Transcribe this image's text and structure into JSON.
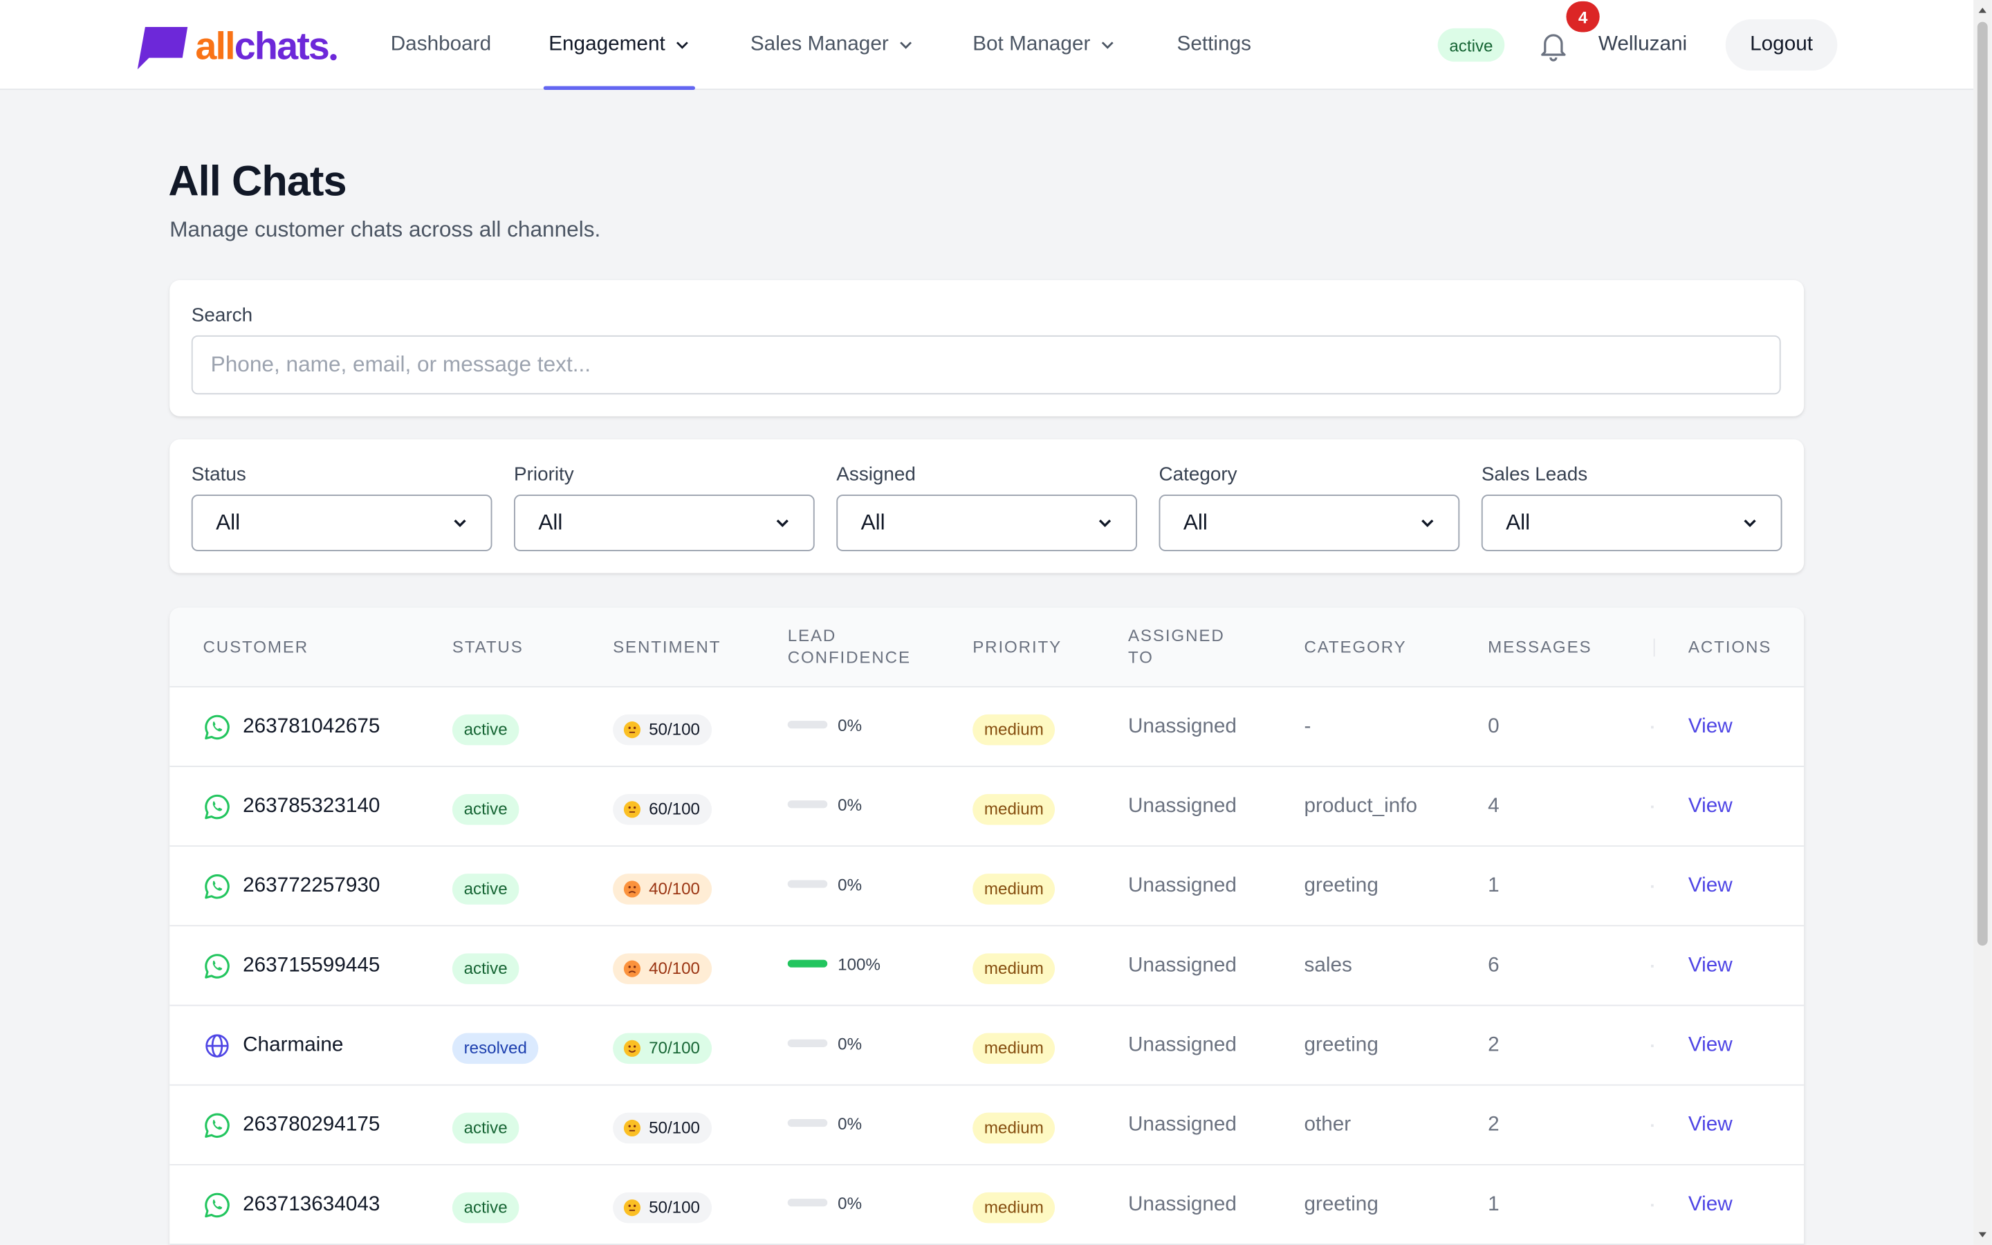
{
  "brand": {
    "part1": "all",
    "part2": "chats"
  },
  "nav": {
    "dashboard": "Dashboard",
    "engagement": "Engagement",
    "sales_manager": "Sales Manager",
    "bot_manager": "Bot Manager",
    "settings": "Settings",
    "active_item": "Engagement"
  },
  "header_right": {
    "status": "active",
    "notification_count": "4",
    "username": "Welluzani",
    "logout_label": "Logout"
  },
  "page": {
    "title": "All Chats",
    "subtitle": "Manage customer chats across all channels."
  },
  "search": {
    "label": "Search",
    "placeholder": "Phone, name, email, or message text...",
    "value": ""
  },
  "filters": [
    {
      "label": "Status",
      "value": "All"
    },
    {
      "label": "Priority",
      "value": "All"
    },
    {
      "label": "Assigned",
      "value": "All"
    },
    {
      "label": "Category",
      "value": "All"
    },
    {
      "label": "Sales Leads",
      "value": "All"
    }
  ],
  "table": {
    "headers": {
      "customer": "Customer",
      "status": "Status",
      "sentiment": "Sentiment",
      "lead_confidence_1": "Lead",
      "lead_confidence_2": "Confidence",
      "priority": "Priority",
      "assigned_to_1": "Assigned",
      "assigned_to_2": "To",
      "category": "Category",
      "messages": "Messages",
      "actions": "Actions"
    },
    "rows": [
      {
        "channel_icon": "whatsapp-icon",
        "customer": "263781042675",
        "status": "active",
        "sentiment": "50/100",
        "sentiment_tone": "neutral",
        "lead_confidence": "0%",
        "lead_confidence_value": 0,
        "priority": "medium",
        "assigned_to": "Unassigned",
        "category": "-",
        "messages": "0",
        "action": "View"
      },
      {
        "channel_icon": "whatsapp-icon",
        "customer": "263785323140",
        "status": "active",
        "sentiment": "60/100",
        "sentiment_tone": "neutral",
        "lead_confidence": "0%",
        "lead_confidence_value": 0,
        "priority": "medium",
        "assigned_to": "Unassigned",
        "category": "product_info",
        "messages": "4",
        "action": "View"
      },
      {
        "channel_icon": "whatsapp-icon",
        "customer": "263772257930",
        "status": "active",
        "sentiment": "40/100",
        "sentiment_tone": "negative",
        "lead_confidence": "0%",
        "lead_confidence_value": 0,
        "priority": "medium",
        "assigned_to": "Unassigned",
        "category": "greeting",
        "messages": "1",
        "action": "View"
      },
      {
        "channel_icon": "whatsapp-icon",
        "customer": "263715599445",
        "status": "active",
        "sentiment": "40/100",
        "sentiment_tone": "negative",
        "lead_confidence": "100%",
        "lead_confidence_value": 100,
        "priority": "medium",
        "assigned_to": "Unassigned",
        "category": "sales",
        "messages": "6",
        "action": "View"
      },
      {
        "channel_icon": "globe-icon",
        "customer": "Charmaine",
        "status": "resolved",
        "sentiment": "70/100",
        "sentiment_tone": "positive",
        "lead_confidence": "0%",
        "lead_confidence_value": 0,
        "priority": "medium",
        "assigned_to": "Unassigned",
        "category": "greeting",
        "messages": "2",
        "action": "View"
      },
      {
        "channel_icon": "whatsapp-icon",
        "customer": "263780294175",
        "status": "active",
        "sentiment": "50/100",
        "sentiment_tone": "neutral",
        "lead_confidence": "0%",
        "lead_confidence_value": 0,
        "priority": "medium",
        "assigned_to": "Unassigned",
        "category": "other",
        "messages": "2",
        "action": "View"
      },
      {
        "channel_icon": "whatsapp-icon",
        "customer": "263713634043",
        "status": "active",
        "sentiment": "50/100",
        "sentiment_tone": "neutral",
        "lead_confidence": "0%",
        "lead_confidence_value": 0,
        "priority": "medium",
        "assigned_to": "Unassigned",
        "category": "greeting",
        "messages": "1",
        "action": "View"
      }
    ]
  },
  "colors": {
    "brand_purple": "#6d28d9",
    "brand_orange": "#f97316",
    "accent": "#6366f1",
    "link": "#4f46e5",
    "whatsapp": "#22c55e"
  }
}
